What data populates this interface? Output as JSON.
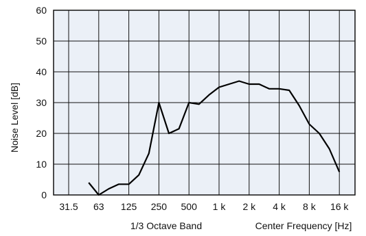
{
  "colors": {
    "plot_background": "#ebf0f7",
    "grid": "#111111",
    "line": "#000000",
    "text": "#111111"
  },
  "chart_data": {
    "type": "line",
    "ylabel": "Noise Level [dB]",
    "xlabel_left": "1/3 Octave Band",
    "xlabel_right": "Center Frequency [Hz]",
    "ylim": [
      0,
      60
    ],
    "yticks": [
      0,
      10,
      20,
      30,
      40,
      50,
      60
    ],
    "xticks": [
      "31.5",
      "63",
      "125",
      "250",
      "500",
      "1 k",
      "2 k",
      "4 k",
      "8 k",
      "16 k"
    ],
    "x_tick_step": 3,
    "grid": true,
    "series": [
      {
        "x": [
          "50",
          "63",
          "80",
          "100",
          "125",
          "160",
          "200",
          "250",
          "315",
          "400",
          "500",
          "630",
          "800",
          "1 k",
          "1.25 k",
          "1.6 k",
          "2 k",
          "2.5 k",
          "3.15 k",
          "4 k",
          "5 k",
          "6.3 k",
          "8 k",
          "10 k",
          "12.5 k",
          "16 k"
        ],
        "values": [
          4,
          0,
          2,
          3.5,
          3.5,
          6.5,
          13.5,
          30,
          20,
          21.5,
          30,
          29.5,
          32.5,
          35,
          36,
          37,
          36,
          36,
          34.5,
          34.5,
          34,
          29,
          23,
          20,
          15,
          7.5
        ]
      }
    ]
  }
}
